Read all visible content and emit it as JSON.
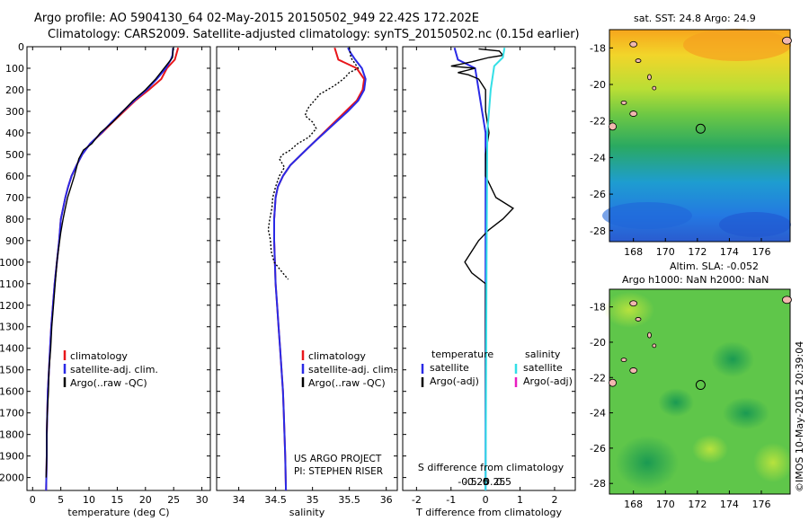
{
  "header": {
    "line1": "Argo profile: AO 5904130_64 02-May-2015 20150502_949 22.42S 172.202E",
    "line2": "Climatology: CARS2009. Satellite-adjusted climatology: synTS_20150502.nc (0.15d earlier)"
  },
  "colors": {
    "climatology": "#e8161b",
    "satellite_adj": "#2a2ae6",
    "argo": "#000000",
    "satellite_sal_diff": "#33dfe6",
    "argo_sal_diff": "#e81cc0"
  },
  "depth_axis": {
    "ticks": [
      0,
      100,
      200,
      300,
      400,
      500,
      600,
      700,
      800,
      900,
      1000,
      1100,
      1200,
      1300,
      1400,
      1500,
      1600,
      1700,
      1800,
      1900,
      2000
    ],
    "range": [
      0,
      2060
    ]
  },
  "chart_data": [
    {
      "type": "line",
      "panel": "temperature",
      "xlabel": "temperature (deg C)",
      "xlim": [
        -1,
        31.5
      ],
      "xticks": [
        0,
        5,
        10,
        15,
        20,
        25,
        30
      ],
      "legend": [
        "climatology",
        "satellite-adj. clim.",
        "Argo(..raw -QC)"
      ],
      "series": [
        {
          "name": "climatology",
          "points": [
            [
              25.8,
              5
            ],
            [
              25.2,
              60
            ],
            [
              23.8,
              100
            ],
            [
              22.8,
              150
            ],
            [
              20.6,
              200
            ],
            [
              18.2,
              250
            ],
            [
              16.2,
              300
            ],
            [
              14.2,
              350
            ],
            [
              12.3,
              400
            ],
            [
              10.2,
              450
            ],
            [
              8.8,
              500
            ],
            [
              7.8,
              550
            ],
            [
              6.9,
              600
            ],
            [
              6.3,
              650
            ],
            [
              5.8,
              700
            ],
            [
              5.4,
              750
            ],
            [
              5.0,
              800
            ],
            [
              4.7,
              900
            ],
            [
              4.3,
              1000
            ],
            [
              3.9,
              1100
            ],
            [
              3.6,
              1200
            ],
            [
              3.3,
              1300
            ],
            [
              3.1,
              1400
            ],
            [
              2.9,
              1500
            ],
            [
              2.7,
              1600
            ],
            [
              2.6,
              1700
            ],
            [
              2.5,
              1800
            ],
            [
              2.5,
              1900
            ],
            [
              2.4,
              2060
            ]
          ]
        },
        {
          "name": "satellite-adj. clim.",
          "points": [
            [
              24.9,
              5
            ],
            [
              24.8,
              40
            ],
            [
              24.5,
              60
            ],
            [
              23.6,
              100
            ],
            [
              22.0,
              150
            ],
            [
              20.2,
              200
            ],
            [
              18.0,
              250
            ],
            [
              16.0,
              300
            ],
            [
              14.0,
              350
            ],
            [
              12.2,
              400
            ],
            [
              10.2,
              450
            ],
            [
              8.8,
              500
            ],
            [
              7.8,
              550
            ],
            [
              6.9,
              600
            ],
            [
              6.3,
              650
            ],
            [
              5.8,
              700
            ],
            [
              5.4,
              750
            ],
            [
              5.0,
              800
            ],
            [
              4.7,
              900
            ],
            [
              4.3,
              1000
            ],
            [
              3.9,
              1100
            ],
            [
              3.6,
              1200
            ],
            [
              3.3,
              1300
            ],
            [
              3.1,
              1400
            ],
            [
              2.9,
              1500
            ],
            [
              2.7,
              1600
            ],
            [
              2.6,
              1700
            ],
            [
              2.5,
              1800
            ],
            [
              2.5,
              1900
            ],
            [
              2.4,
              2060
            ]
          ]
        },
        {
          "name": "Argo(..raw -QC)",
          "points": [
            [
              24.9,
              5
            ],
            [
              24.8,
              50
            ],
            [
              24.2,
              70
            ],
            [
              23.3,
              100
            ],
            [
              21.8,
              150
            ],
            [
              20.0,
              200
            ],
            [
              17.8,
              250
            ],
            [
              16.0,
              300
            ],
            [
              14.2,
              350
            ],
            [
              12.0,
              400
            ],
            [
              10.5,
              450
            ],
            [
              9.0,
              480
            ],
            [
              8.2,
              520
            ],
            [
              7.8,
              560
            ],
            [
              7.4,
              600
            ],
            [
              6.8,
              650
            ],
            [
              6.2,
              700
            ],
            [
              5.7,
              760
            ],
            [
              5.4,
              800
            ],
            [
              5.0,
              860
            ],
            [
              4.8,
              900
            ],
            [
              4.5,
              960
            ],
            [
              4.3,
              1000
            ],
            [
              4.0,
              1100
            ],
            [
              3.7,
              1200
            ],
            [
              3.4,
              1300
            ],
            [
              3.2,
              1400
            ],
            [
              2.9,
              1500
            ],
            [
              2.8,
              1600
            ],
            [
              2.6,
              1700
            ],
            [
              2.5,
              1800
            ],
            [
              2.5,
              1900
            ],
            [
              2.4,
              2000
            ]
          ]
        }
      ]
    },
    {
      "type": "line",
      "panel": "salinity",
      "xlabel": "salinity",
      "xlim": [
        33.7,
        36.15
      ],
      "xticks": [
        34,
        34.5,
        35,
        35.5,
        36
      ],
      "legend": [
        "climatology",
        "satellite-adj. clim.",
        "Argo(..raw -QC)"
      ],
      "series": [
        {
          "name": "climatology",
          "points": [
            [
              35.3,
              5
            ],
            [
              35.35,
              60
            ],
            [
              35.6,
              100
            ],
            [
              35.7,
              150
            ],
            [
              35.68,
              200
            ],
            [
              35.6,
              250
            ],
            [
              35.45,
              300
            ],
            [
              35.3,
              350
            ],
            [
              35.15,
              400
            ],
            [
              35.0,
              450
            ],
            [
              34.85,
              500
            ],
            [
              34.7,
              550
            ],
            [
              34.6,
              600
            ],
            [
              34.53,
              650
            ],
            [
              34.5,
              700
            ],
            [
              34.48,
              800
            ],
            [
              34.48,
              900
            ],
            [
              34.49,
              1000
            ],
            [
              34.5,
              1100
            ],
            [
              34.52,
              1200
            ],
            [
              34.54,
              1300
            ],
            [
              34.56,
              1400
            ],
            [
              34.58,
              1500
            ],
            [
              34.6,
              1600
            ],
            [
              34.61,
              1700
            ],
            [
              34.62,
              1800
            ],
            [
              34.63,
              1900
            ],
            [
              34.64,
              2060
            ]
          ]
        },
        {
          "name": "satellite-adj. clim.",
          "points": [
            [
              35.48,
              5
            ],
            [
              35.52,
              30
            ],
            [
              35.58,
              60
            ],
            [
              35.67,
              100
            ],
            [
              35.72,
              150
            ],
            [
              35.7,
              200
            ],
            [
              35.62,
              250
            ],
            [
              35.48,
              300
            ],
            [
              35.32,
              350
            ],
            [
              35.16,
              400
            ],
            [
              35.0,
              450
            ],
            [
              34.85,
              500
            ],
            [
              34.7,
              550
            ],
            [
              34.6,
              600
            ],
            [
              34.53,
              650
            ],
            [
              34.5,
              700
            ],
            [
              34.48,
              800
            ],
            [
              34.48,
              900
            ],
            [
              34.49,
              1000
            ],
            [
              34.5,
              1100
            ],
            [
              34.52,
              1200
            ],
            [
              34.54,
              1300
            ],
            [
              34.56,
              1400
            ],
            [
              34.58,
              1500
            ],
            [
              34.6,
              1600
            ],
            [
              34.61,
              1700
            ],
            [
              34.62,
              1800
            ],
            [
              34.63,
              1900
            ],
            [
              34.64,
              2060
            ]
          ]
        },
        {
          "name": "Argo(..raw -QC)",
          "points": [
            [
              35.5,
              5
            ],
            [
              35.52,
              50
            ],
            [
              35.58,
              80
            ],
            [
              35.62,
              100
            ],
            [
              35.5,
              120
            ],
            [
              35.45,
              140
            ],
            [
              35.38,
              160
            ],
            [
              35.3,
              180
            ],
            [
              35.2,
              200
            ],
            [
              35.1,
              220
            ],
            [
              35.05,
              240
            ],
            [
              35.0,
              260
            ],
            [
              34.95,
              280
            ],
            [
              34.92,
              300
            ],
            [
              34.9,
              320
            ],
            [
              35.0,
              350
            ],
            [
              35.05,
              380
            ],
            [
              35.0,
              400
            ],
            [
              34.95,
              420
            ],
            [
              34.8,
              450
            ],
            [
              34.7,
              480
            ],
            [
              34.6,
              500
            ],
            [
              34.55,
              520
            ],
            [
              34.62,
              560
            ],
            [
              34.55,
              600
            ],
            [
              34.5,
              650
            ],
            [
              34.46,
              700
            ],
            [
              34.45,
              750
            ],
            [
              34.42,
              800
            ],
            [
              34.4,
              850
            ],
            [
              34.42,
              880
            ],
            [
              34.43,
              900
            ],
            [
              34.44,
              950
            ],
            [
              34.48,
              1000
            ],
            [
              34.55,
              1030
            ],
            [
              34.62,
              1060
            ],
            [
              34.67,
              1080
            ]
          ]
        }
      ]
    },
    {
      "type": "line",
      "panel": "difference",
      "xlabel": "T difference from climatology",
      "xlabel_top": "S difference from climatology",
      "xlim": [
        -2.4,
        2.6
      ],
      "xticks": [
        -2,
        -1,
        0,
        1,
        2
      ],
      "xticks_top": [
        -0.5,
        -0.25,
        0,
        0.25,
        0.5
      ],
      "legend_temperature": [
        "temperature",
        "satellite",
        "Argo(-adj)"
      ],
      "legend_salinity": [
        "salinity",
        "satellite",
        "Argo(-adj)"
      ],
      "series": [
        {
          "name": "temperature satellite",
          "points": [
            [
              -0.9,
              5
            ],
            [
              -0.8,
              60
            ],
            [
              -0.3,
              100
            ],
            [
              -0.2,
              200
            ],
            [
              -0.1,
              300
            ],
            [
              0,
              400
            ],
            [
              0,
              2060
            ]
          ]
        },
        {
          "name": "temperature Argo(-adj)",
          "points": [
            [
              -0.2,
              10
            ],
            [
              0.4,
              20
            ],
            [
              0.5,
              40
            ],
            [
              0.1,
              50
            ],
            [
              -0.4,
              70
            ],
            [
              -1.0,
              90
            ],
            [
              -0.3,
              100
            ],
            [
              -0.8,
              120
            ],
            [
              -0.5,
              130
            ],
            [
              -0.2,
              150
            ],
            [
              0,
              200
            ],
            [
              0,
              300
            ],
            [
              0.1,
              400
            ],
            [
              0,
              500
            ],
            [
              0,
              600
            ],
            [
              0.3,
              700
            ],
            [
              0.8,
              750
            ],
            [
              0.5,
              800
            ],
            [
              0.1,
              850
            ],
            [
              -0.2,
              900
            ],
            [
              -0.4,
              950
            ],
            [
              -0.6,
              1000
            ],
            [
              -0.4,
              1050
            ],
            [
              0,
              1100
            ],
            [
              0,
              2000
            ]
          ]
        },
        {
          "name": "salinity satellite",
          "points": [
            [
              0.55,
              5
            ],
            [
              0.5,
              50
            ],
            [
              0.25,
              90
            ],
            [
              0.15,
              200
            ],
            [
              0.05,
              400
            ],
            [
              0.03,
              1000
            ],
            [
              0,
              2060
            ]
          ]
        }
      ],
      "annotations": [
        "US ARGO PROJECT",
        "PI: STEPHEN RISER"
      ]
    }
  ],
  "maps": [
    {
      "title": "sat. SST: 24.8  Argo: 24.9",
      "xticks": [
        168,
        170,
        172,
        174,
        176
      ],
      "yticks": [
        -18,
        -20,
        -22,
        -24,
        -26,
        -28
      ]
    },
    {
      "title_line1": "Altim. SLA: -0.052",
      "title_line2": "Argo h1000: NaN h2000: NaN",
      "xticks": [
        168,
        170,
        172,
        174,
        176
      ],
      "yticks": [
        -18,
        -20,
        -22,
        -24,
        -26,
        -28
      ]
    }
  ],
  "credit": "©IMOS 10-May-2015 20:39:04"
}
